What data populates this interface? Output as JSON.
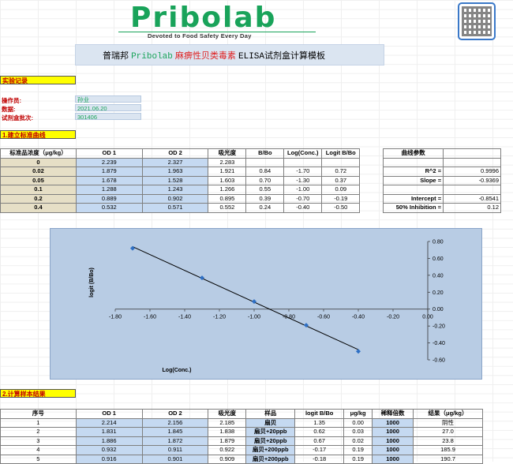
{
  "logo": {
    "brand": "Pribolab",
    "tagline": "Devoted to Food Safety Every Day"
  },
  "title": {
    "part1": "普瑞邦 ",
    "part2": "Pribolab",
    "part3": " 麻痹性贝类毒素 ",
    "part4": "ELISA",
    "part5": "试剂盒计算模板"
  },
  "section_record": "实验记录",
  "info": {
    "operator_label": "操作员:",
    "operator": "孙业",
    "date_label": "数据:",
    "date": "2021.06.20",
    "batch_label": "试剂盒批次:",
    "batch": "301406"
  },
  "section_curve": "1.建立标准曲线",
  "std_table": {
    "headers": [
      "标准品浓度（μg/kg）",
      "OD 1",
      "OD 2",
      "吸光度",
      "B/Bo",
      "Log(Conc.)",
      "Logit B/Bo"
    ],
    "rows": [
      [
        "0",
        "2.239",
        "2.327",
        "2.283",
        "",
        "",
        ""
      ],
      [
        "0.02",
        "1.879",
        "1.963",
        "1.921",
        "0.84",
        "-1.70",
        "0.72"
      ],
      [
        "0.05",
        "1.678",
        "1.528",
        "1.603",
        "0.70",
        "-1.30",
        "0.37"
      ],
      [
        "0.1",
        "1.288",
        "1.243",
        "1.266",
        "0.55",
        "-1.00",
        "0.09"
      ],
      [
        "0.2",
        "0.889",
        "0.902",
        "0.895",
        "0.39",
        "-0.70",
        "-0.19"
      ],
      [
        "0.4",
        "0.532",
        "0.571",
        "0.552",
        "0.24",
        "-0.40",
        "-0.50"
      ]
    ],
    "params_header": "曲线参数",
    "params": [
      {
        "label": "",
        "value": ""
      },
      {
        "label": "R^2 =",
        "value": "0.9996"
      },
      {
        "label": "Slope =",
        "value": "-0.9369"
      },
      {
        "label": "",
        "value": ""
      },
      {
        "label": "Intercept =",
        "value": "-0.8541"
      },
      {
        "label": "50% Inhibition =",
        "value": "0.12"
      }
    ]
  },
  "chart_data": {
    "type": "scatter",
    "xlabel": "Log(Conc.)",
    "ylabel": "logit (B/Bo)",
    "x": [
      -1.7,
      -1.3,
      -1.0,
      -0.7,
      -0.4
    ],
    "y": [
      0.72,
      0.37,
      0.09,
      -0.19,
      -0.5
    ],
    "xlim": [
      -1.8,
      0.0
    ],
    "ylim": [
      -0.6,
      0.8
    ],
    "xticks": [
      "-1.80",
      "-1.60",
      "-1.40",
      "-1.20",
      "-1.00",
      "-0.80",
      "-0.60",
      "-0.40",
      "-0.20",
      "0.00"
    ],
    "xtick_values": [
      -1.8,
      -1.6,
      -1.4,
      -1.2,
      -1.0,
      -0.8,
      -0.6,
      -0.4,
      -0.2,
      0.0
    ],
    "yticks": [
      "0.80",
      "0.60",
      "0.40",
      "0.20",
      "0.00",
      "-0.20",
      "-0.40",
      "-0.60"
    ],
    "ytick_values": [
      0.8,
      0.6,
      0.4,
      0.2,
      0.0,
      -0.2,
      -0.4,
      -0.6
    ],
    "trendline": {
      "slope": -0.9369,
      "intercept": -0.8541
    },
    "grid": false,
    "marker_color": "#2e6fc4",
    "line_color": "#000000"
  },
  "section_samples": "2.计算样本结果",
  "sample_table": {
    "headers": [
      "序号",
      "OD 1",
      "OD 2",
      "吸光度",
      "样品",
      "logit B/Bo",
      "μg/kg",
      "稀释倍数",
      "结果（μg/kg）"
    ],
    "rows": [
      [
        "1",
        "2.214",
        "2.156",
        "2.185",
        "扇贝",
        "1.35",
        "0.00",
        "1000",
        "阴性"
      ],
      [
        "2",
        "1.831",
        "1.845",
        "1.838",
        "扇贝+20ppb",
        "0.62",
        "0.03",
        "1000",
        "27.0"
      ],
      [
        "3",
        "1.886",
        "1.872",
        "1.879",
        "扇贝+20ppb",
        "0.67",
        "0.02",
        "1000",
        "23.8"
      ],
      [
        "4",
        "0.932",
        "0.911",
        "0.922",
        "扇贝+200ppb",
        "-0.17",
        "0.19",
        "1000",
        "185.9"
      ],
      [
        "5",
        "0.916",
        "0.901",
        "0.909",
        "扇贝+200ppb",
        "-0.18",
        "0.19",
        "1000",
        "190.7"
      ]
    ]
  }
}
